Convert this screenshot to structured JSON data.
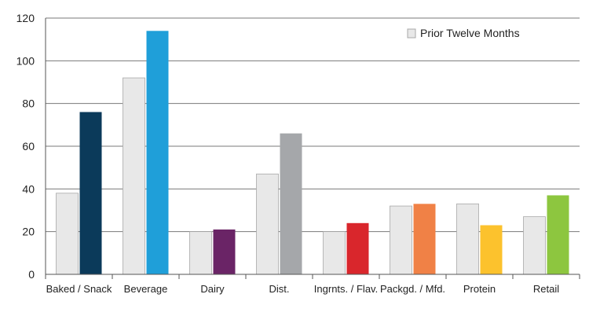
{
  "chart_data": {
    "type": "bar",
    "categories": [
      "Baked / Snack",
      "Beverage",
      "Dairy",
      "Dist.",
      "Ingrnts. / Flav.",
      "Packgd. / Mfd.",
      "Protein",
      "Retail"
    ],
    "series": [
      {
        "name": "Prior Twelve Months",
        "values": [
          38,
          92,
          20,
          47,
          20,
          32,
          33,
          27
        ],
        "color": "#e8e8e8",
        "stroke": "#a8a8a8"
      },
      {
        "values": [
          76,
          114,
          21,
          66,
          24,
          33,
          23,
          37
        ],
        "colors": [
          "#0b3a5a",
          "#1f9fd9",
          "#6a2466",
          "#a5a7aa",
          "#d9262c",
          "#f08146",
          "#fcc22d",
          "#8dc63f"
        ]
      }
    ],
    "ylim": [
      0,
      120
    ],
    "yticks": [
      0,
      20,
      40,
      60,
      80,
      100,
      120
    ],
    "grid": true,
    "legend": "top-right",
    "title": "",
    "xlabel": "",
    "ylabel": ""
  }
}
